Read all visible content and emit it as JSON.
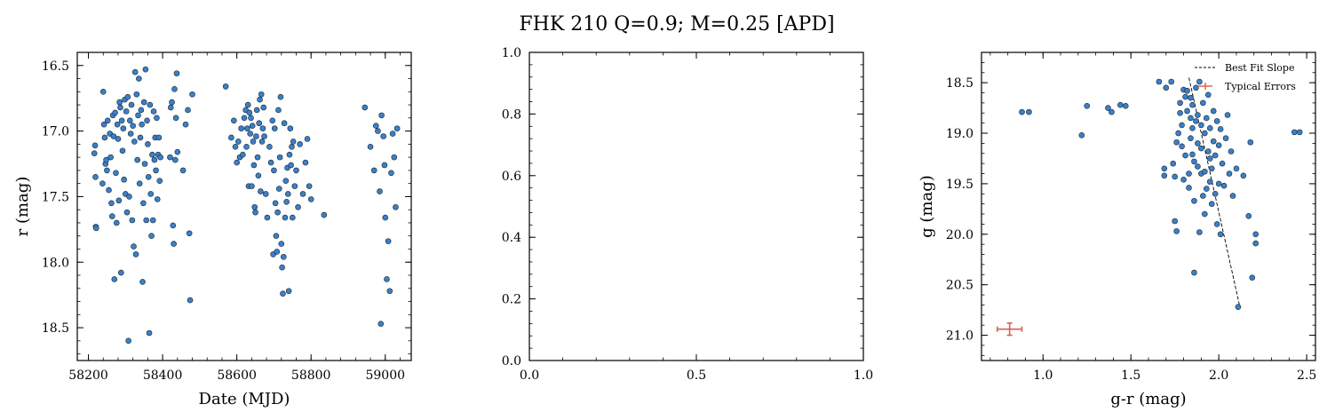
{
  "figure": {
    "title": "FHK 210  Q=0.9; M=0.25 [APD]",
    "point_color": "#3a80c9",
    "point_edge": "#1a2633",
    "error_color": "#d9604f"
  },
  "chart_data": [
    {
      "type": "scatter",
      "xlabel": "Date (MJD)",
      "ylabel": "r (mag)",
      "xlim": [
        58170,
        59070
      ],
      "ylim": [
        18.75,
        16.4
      ],
      "y_inverted": true,
      "xticks": [
        58200,
        58400,
        58600,
        58800,
        59000
      ],
      "yticks": [
        16.5,
        17.0,
        17.5,
        18.0,
        18.5
      ],
      "grid": false,
      "points": [
        [
          58216,
          17.17
        ],
        [
          58218,
          17.11
        ],
        [
          58219,
          17.35
        ],
        [
          58220,
          17.73
        ],
        [
          58221,
          17.74
        ],
        [
          58238,
          17.4
        ],
        [
          58240,
          16.7
        ],
        [
          58242,
          16.95
        ],
        [
          58244,
          17.05
        ],
        [
          58246,
          17.25
        ],
        [
          58248,
          17.22
        ],
        [
          58250,
          17.3
        ],
        [
          58252,
          16.92
        ],
        [
          58255,
          17.45
        ],
        [
          58258,
          17.02
        ],
        [
          58260,
          17.2
        ],
        [
          58262,
          17.55
        ],
        [
          58264,
          17.65
        ],
        [
          58266,
          16.88
        ],
        [
          58268,
          17.04
        ],
        [
          58270,
          18.13
        ],
        [
          58272,
          16.86
        ],
        [
          58274,
          17.32
        ],
        [
          58276,
          17.7
        ],
        [
          58278,
          16.95
        ],
        [
          58280,
          17.06
        ],
        [
          58282,
          17.53
        ],
        [
          58284,
          16.78
        ],
        [
          58286,
          16.82
        ],
        [
          58288,
          18.08
        ],
        [
          58290,
          16.92
        ],
        [
          58292,
          17.15
        ],
        [
          58294,
          16.98
        ],
        [
          58296,
          17.37
        ],
        [
          58298,
          16.76
        ],
        [
          58300,
          17.48
        ],
        [
          58302,
          16.85
        ],
        [
          58304,
          17.62
        ],
        [
          58306,
          16.74
        ],
        [
          58308,
          18.6
        ],
        [
          58310,
          17.5
        ],
        [
          58312,
          16.92
        ],
        [
          58314,
          17.02
        ],
        [
          58316,
          16.8
        ],
        [
          58318,
          17.68
        ],
        [
          58320,
          16.96
        ],
        [
          58322,
          17.88
        ],
        [
          58324,
          17.08
        ],
        [
          58326,
          16.55
        ],
        [
          58328,
          17.94
        ],
        [
          58330,
          16.72
        ],
        [
          58332,
          17.22
        ],
        [
          58334,
          16.88
        ],
        [
          58336,
          16.6
        ],
        [
          58338,
          17.4
        ],
        [
          58340,
          17.05
        ],
        [
          58342,
          16.84
        ],
        [
          58344,
          16.95
        ],
        [
          58346,
          18.15
        ],
        [
          58348,
          17.55
        ],
        [
          58350,
          16.78
        ],
        [
          58352,
          17.25
        ],
        [
          58354,
          16.53
        ],
        [
          58356,
          17.68
        ],
        [
          58358,
          16.92
        ],
        [
          58360,
          17.1
        ],
        [
          58362,
          17.35
        ],
        [
          58364,
          18.54
        ],
        [
          58366,
          16.8
        ],
        [
          58368,
          17.48
        ],
        [
          58370,
          17.8
        ],
        [
          58372,
          17.18
        ],
        [
          58374,
          17.68
        ],
        [
          58376,
          16.85
        ],
        [
          58378,
          17.22
        ],
        [
          58380,
          17.05
        ],
        [
          58382,
          17.3
        ],
        [
          58384,
          16.9
        ],
        [
          58386,
          17.52
        ],
        [
          58388,
          17.18
        ],
        [
          58390,
          17.05
        ],
        [
          58392,
          17.38
        ],
        [
          58394,
          17.2
        ],
        [
          58420,
          17.2
        ],
        [
          58422,
          16.82
        ],
        [
          58425,
          16.78
        ],
        [
          58428,
          17.72
        ],
        [
          58430,
          17.86
        ],
        [
          58432,
          16.68
        ],
        [
          58434,
          17.22
        ],
        [
          58436,
          16.9
        ],
        [
          58438,
          16.56
        ],
        [
          58440,
          17.16
        ],
        [
          58455,
          17.3
        ],
        [
          58462,
          16.95
        ],
        [
          58468,
          16.84
        ],
        [
          58472,
          17.78
        ],
        [
          58474,
          18.29
        ],
        [
          58480,
          16.72
        ],
        [
          58570,
          16.66
        ],
        [
          58585,
          17.05
        ],
        [
          58592,
          16.92
        ],
        [
          58596,
          17.12
        ],
        [
          58600,
          17.24
        ],
        [
          58604,
          17.08
        ],
        [
          58608,
          17.2
        ],
        [
          58612,
          16.98
        ],
        [
          58616,
          17.18
        ],
        [
          58620,
          16.9
        ],
        [
          58624,
          16.84
        ],
        [
          58626,
          17.12
        ],
        [
          58628,
          16.98
        ],
        [
          58630,
          16.8
        ],
        [
          58632,
          17.42
        ],
        [
          58634,
          16.86
        ],
        [
          58636,
          17.02
        ],
        [
          58638,
          16.9
        ],
        [
          58640,
          17.42
        ],
        [
          58642,
          16.96
        ],
        [
          58644,
          17.08
        ],
        [
          58646,
          17.26
        ],
        [
          58648,
          17.58
        ],
        [
          58650,
          17.62
        ],
        [
          58652,
          17.04
        ],
        [
          58654,
          16.84
        ],
        [
          58656,
          17.2
        ],
        [
          58658,
          17.34
        ],
        [
          58660,
          16.94
        ],
        [
          58662,
          16.76
        ],
        [
          58664,
          17.46
        ],
        [
          58666,
          16.72
        ],
        [
          58668,
          17.08
        ],
        [
          58670,
          16.98
        ],
        [
          58672,
          16.82
        ],
        [
          58674,
          17.04
        ],
        [
          58678,
          17.48
        ],
        [
          58682,
          17.66
        ],
        [
          58688,
          17.12
        ],
        [
          58692,
          17.24
        ],
        [
          58696,
          16.92
        ],
        [
          58698,
          17.94
        ],
        [
          58700,
          17.3
        ],
        [
          58702,
          16.98
        ],
        [
          58704,
          17.55
        ],
        [
          58706,
          17.8
        ],
        [
          58708,
          17.92
        ],
        [
          58710,
          17.62
        ],
        [
          58712,
          16.84
        ],
        [
          58714,
          17.44
        ],
        [
          58716,
          17.2
        ],
        [
          58718,
          16.74
        ],
        [
          58720,
          17.86
        ],
        [
          58722,
          18.04
        ],
        [
          58724,
          18.24
        ],
        [
          58726,
          17.96
        ],
        [
          58728,
          16.94
        ],
        [
          58730,
          17.66
        ],
        [
          58732,
          17.38
        ],
        [
          58734,
          17.54
        ],
        [
          58736,
          17.28
        ],
        [
          58738,
          17.48
        ],
        [
          58740,
          18.22
        ],
        [
          58742,
          17.18
        ],
        [
          58744,
          16.98
        ],
        [
          58746,
          17.26
        ],
        [
          58748,
          17.12
        ],
        [
          58750,
          17.66
        ],
        [
          58752,
          17.08
        ],
        [
          58756,
          17.42
        ],
        [
          58760,
          17.3
        ],
        [
          58765,
          17.58
        ],
        [
          58770,
          17.1
        ],
        [
          58778,
          17.48
        ],
        [
          58785,
          17.24
        ],
        [
          58790,
          17.06
        ],
        [
          58795,
          17.42
        ],
        [
          58800,
          17.52
        ],
        [
          58835,
          17.64
        ],
        [
          58945,
          16.82
        ],
        [
          58960,
          17.12
        ],
        [
          58970,
          17.3
        ],
        [
          58975,
          16.96
        ],
        [
          58980,
          17.0
        ],
        [
          58985,
          17.46
        ],
        [
          58988,
          18.47
        ],
        [
          58990,
          16.88
        ],
        [
          58995,
          17.04
        ],
        [
          58998,
          17.26
        ],
        [
          59000,
          17.66
        ],
        [
          59004,
          18.13
        ],
        [
          59008,
          17.84
        ],
        [
          59012,
          18.22
        ],
        [
          59016,
          17.32
        ],
        [
          59020,
          17.02
        ],
        [
          59024,
          17.2
        ],
        [
          59028,
          17.58
        ],
        [
          59032,
          16.98
        ]
      ]
    },
    {
      "type": "scatter",
      "xlabel": "",
      "ylabel": "",
      "xlim": [
        0,
        1
      ],
      "ylim": [
        0,
        1
      ],
      "xticks": [
        0.0,
        0.5,
        1.0
      ],
      "yticks": [
        0.0,
        0.2,
        0.4,
        0.6,
        0.8,
        1.0
      ],
      "grid": false,
      "points": []
    },
    {
      "type": "scatter",
      "xlabel": "g-r (mag)",
      "ylabel": "g (mag)",
      "xlim": [
        0.65,
        2.55
      ],
      "ylim": [
        21.25,
        18.2
      ],
      "y_inverted": true,
      "xticks": [
        1.0,
        1.5,
        2.0,
        2.5
      ],
      "yticks": [
        18.5,
        19.0,
        19.5,
        20.0,
        20.5,
        21.0
      ],
      "grid": false,
      "legend": {
        "position": "top-right",
        "entries": [
          "Best Fit Slope",
          "Typical Errors"
        ]
      },
      "best_fit_line": [
        [
          1.83,
          18.45
        ],
        [
          2.12,
          20.72
        ]
      ],
      "typical_error": {
        "x": 0.81,
        "y": 20.94,
        "xerr": 0.07,
        "yerr": 0.06
      },
      "points": [
        [
          0.88,
          18.79
        ],
        [
          0.92,
          18.79
        ],
        [
          1.22,
          19.02
        ],
        [
          1.25,
          18.73
        ],
        [
          1.37,
          18.75
        ],
        [
          1.39,
          18.79
        ],
        [
          1.44,
          18.72
        ],
        [
          1.47,
          18.73
        ],
        [
          1.66,
          18.49
        ],
        [
          1.7,
          18.55
        ],
        [
          1.69,
          19.35
        ],
        [
          1.69,
          19.42
        ],
        [
          1.73,
          18.49
        ],
        [
          1.74,
          19.3
        ],
        [
          1.75,
          19.43
        ],
        [
          1.75,
          19.87
        ],
        [
          1.76,
          19.97
        ],
        [
          1.76,
          19.09
        ],
        [
          1.77,
          19.0
        ],
        [
          1.78,
          18.7
        ],
        [
          1.78,
          18.8
        ],
        [
          1.79,
          19.13
        ],
        [
          1.79,
          18.92
        ],
        [
          1.8,
          19.46
        ],
        [
          1.8,
          18.57
        ],
        [
          1.81,
          18.64
        ],
        [
          1.81,
          19.22
        ],
        [
          1.82,
          18.78
        ],
        [
          1.82,
          18.58
        ],
        [
          1.83,
          19.54
        ],
        [
          1.83,
          19.4
        ],
        [
          1.84,
          19.05
        ],
        [
          1.84,
          18.85
        ],
        [
          1.84,
          18.65
        ],
        [
          1.85,
          19.21
        ],
        [
          1.85,
          18.95
        ],
        [
          1.85,
          18.72
        ],
        [
          1.86,
          20.38
        ],
        [
          1.86,
          19.67
        ],
        [
          1.86,
          19.28
        ],
        [
          1.87,
          18.88
        ],
        [
          1.87,
          18.55
        ],
        [
          1.88,
          19.33
        ],
        [
          1.88,
          19.1
        ],
        [
          1.88,
          18.82
        ],
        [
          1.89,
          19.98
        ],
        [
          1.89,
          18.49
        ],
        [
          1.9,
          19.4
        ],
        [
          1.9,
          19.15
        ],
        [
          1.9,
          18.92
        ],
        [
          1.91,
          19.62
        ],
        [
          1.91,
          18.7
        ],
        [
          1.92,
          19.8
        ],
        [
          1.92,
          19.38
        ],
        [
          1.92,
          19.0
        ],
        [
          1.93,
          18.85
        ],
        [
          1.93,
          19.55
        ],
        [
          1.94,
          19.18
        ],
        [
          1.94,
          18.62
        ],
        [
          1.95,
          19.48
        ],
        [
          1.95,
          19.25
        ],
        [
          1.95,
          18.95
        ],
        [
          1.96,
          19.7
        ],
        [
          1.96,
          19.35
        ],
        [
          1.97,
          19.08
        ],
        [
          1.97,
          18.78
        ],
        [
          1.98,
          19.6
        ],
        [
          1.98,
          19.22
        ],
        [
          1.99,
          19.9
        ],
        [
          1.99,
          18.88
        ],
        [
          2.0,
          19.5
        ],
        [
          2.0,
          19.12
        ],
        [
          2.01,
          20.0
        ],
        [
          2.01,
          18.96
        ],
        [
          2.02,
          19.3
        ],
        [
          2.03,
          19.52
        ],
        [
          2.04,
          19.05
        ],
        [
          2.05,
          18.82
        ],
        [
          2.06,
          19.4
        ],
        [
          2.07,
          19.18
        ],
        [
          2.08,
          19.62
        ],
        [
          2.1,
          19.35
        ],
        [
          2.11,
          20.72
        ],
        [
          2.14,
          19.42
        ],
        [
          2.17,
          19.82
        ],
        [
          2.18,
          19.09
        ],
        [
          2.19,
          20.43
        ],
        [
          2.21,
          20.0
        ],
        [
          2.21,
          20.09
        ],
        [
          2.43,
          18.99
        ],
        [
          2.46,
          18.99
        ]
      ]
    }
  ]
}
